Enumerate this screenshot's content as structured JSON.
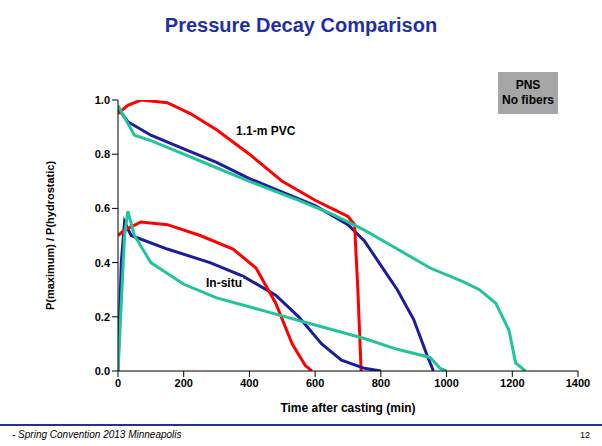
{
  "chart_data": {
    "type": "line",
    "title": "Pressure Decay Comparison",
    "x_label": "Time after casting (min)",
    "y_label": "P(maximum) / P(hydrostatic)",
    "xlim": [
      0,
      1400
    ],
    "xticks": [
      0,
      200,
      400,
      600,
      800,
      1000,
      1200,
      1400
    ],
    "ylim": [
      0,
      1
    ],
    "yticks": [
      {
        "value": 0,
        "label": "0.0"
      },
      {
        "value": 0.2,
        "label": "0.2"
      },
      {
        "value": 0.4,
        "label": "0.4"
      },
      {
        "value": 0.6,
        "label": "0.6"
      },
      {
        "value": 0.8,
        "label": "0.8"
      },
      {
        "value": 1,
        "label": "1.0"
      }
    ],
    "grid": false,
    "annotations": [
      "1.1-m PVC",
      "In-situ",
      "PNS",
      "No fibers"
    ],
    "series": [
      {
        "color": "#1c1c9c",
        "x": [
          0,
          30,
          100,
          200,
          300,
          400,
          500,
          600,
          700,
          750,
          800,
          850,
          900,
          940,
          960
        ],
        "values": [
          0.97,
          0.92,
          0.87,
          0.82,
          0.77,
          0.71,
          0.66,
          0.61,
          0.54,
          0.48,
          0.39,
          0.3,
          0.19,
          0.06,
          0
        ]
      },
      {
        "color": "#ff0000",
        "x": [
          0,
          30,
          70,
          150,
          220,
          300,
          400,
          500,
          600,
          650,
          700,
          720,
          730,
          740
        ],
        "values": [
          0.95,
          0.98,
          1.0,
          0.99,
          0.95,
          0.89,
          0.8,
          0.7,
          0.63,
          0.6,
          0.57,
          0.54,
          0.3,
          0
        ]
      },
      {
        "color": "#22c49c",
        "x": [
          0,
          50,
          100,
          200,
          300,
          400,
          550,
          650,
          750,
          850,
          950,
          1050,
          1100,
          1150,
          1190,
          1210,
          1240
        ],
        "values": [
          0.98,
          0.87,
          0.85,
          0.8,
          0.75,
          0.7,
          0.63,
          0.58,
          0.52,
          0.45,
          0.38,
          0.33,
          0.3,
          0.25,
          0.15,
          0.03,
          0
        ]
      },
      {
        "color": "#1c1c9c",
        "x": [
          0,
          10,
          20,
          40,
          150,
          280,
          380,
          480,
          550,
          620,
          680,
          750,
          800
        ],
        "values": [
          0,
          0.4,
          0.55,
          0.5,
          0.45,
          0.4,
          0.35,
          0.28,
          0.2,
          0.1,
          0.04,
          0.01,
          0
        ]
      },
      {
        "color": "#ff0000",
        "x": [
          0,
          20,
          70,
          150,
          250,
          350,
          420,
          480,
          530,
          570,
          590
        ],
        "values": [
          0.5,
          0.52,
          0.55,
          0.54,
          0.5,
          0.45,
          0.38,
          0.25,
          0.1,
          0.02,
          0
        ]
      },
      {
        "color": "#22c49c",
        "x": [
          0,
          20,
          30,
          50,
          100,
          200,
          300,
          450,
          600,
          750,
          850,
          950,
          980,
          1000
        ],
        "values": [
          0,
          0.5,
          0.59,
          0.5,
          0.4,
          0.32,
          0.27,
          0.22,
          0.17,
          0.12,
          0.08,
          0.05,
          0.01,
          0
        ]
      }
    ]
  },
  "footer": "- Spring Convention 2013 Minneapolis",
  "page_number": "12"
}
